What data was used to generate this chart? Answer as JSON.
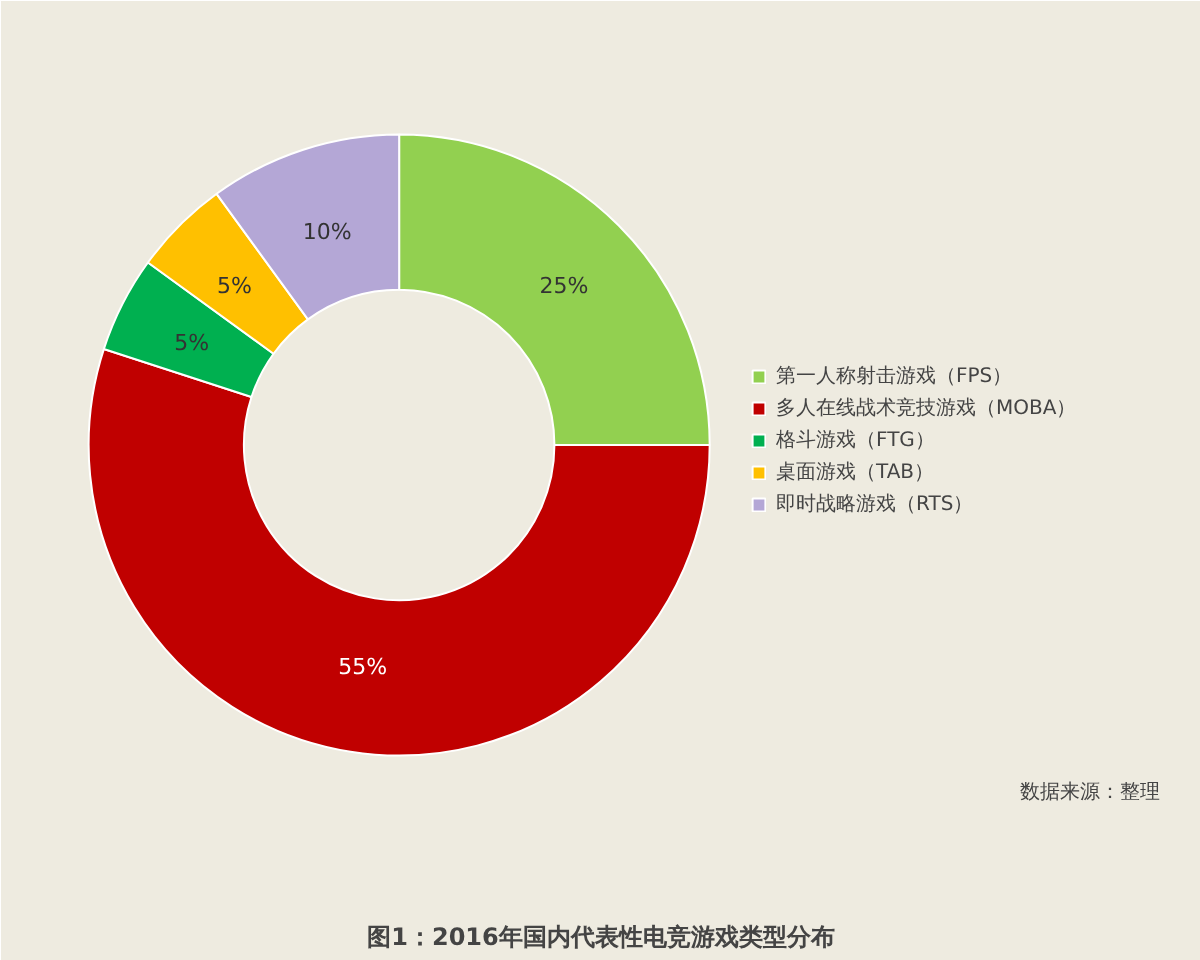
{
  "chart_data": {
    "type": "donut",
    "title": "图1：2016年国内代表性电竞游戏类型分布",
    "categories": [
      "第一人称射击游戏（FPS）",
      "多人在线战术竞技游戏（MOBA）",
      "格斗游戏（FTG）",
      "桌面游戏（TAB）",
      "即时战略游戏（RTS）"
    ],
    "values": [
      25,
      55,
      5,
      5,
      10
    ],
    "colors": [
      "#92d050",
      "#c00000",
      "#00b050",
      "#ffc000",
      "#b4a7d6"
    ],
    "value_labels": [
      "25%",
      "55%",
      "5%",
      "5%",
      "10%"
    ],
    "legend": "right",
    "annotations": [
      "数据来源：整理"
    ]
  }
}
